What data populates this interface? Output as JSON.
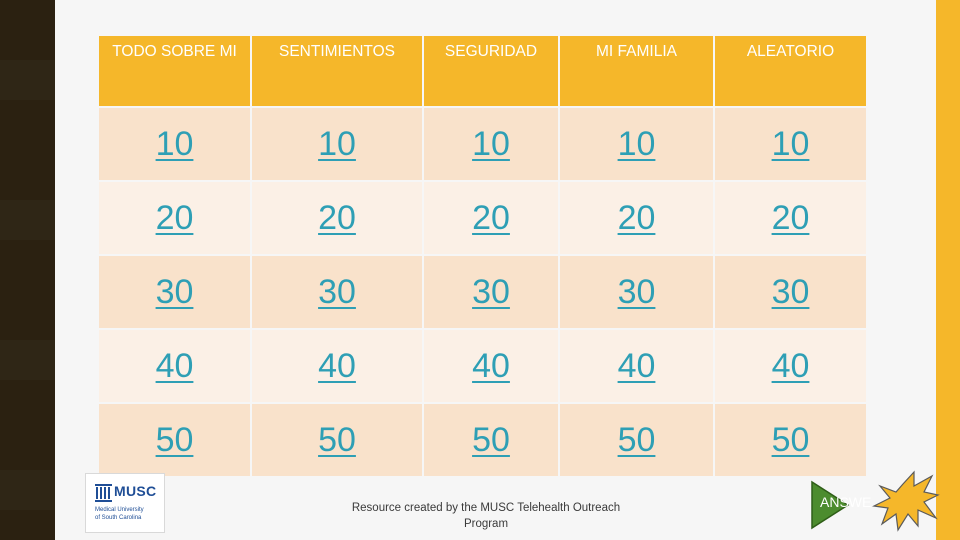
{
  "board": {
    "categories": [
      "TODO SOBRE MI",
      "SENTIMIENTOS",
      "SEGURIDAD",
      "MI FAMILIA",
      "ALEATORIO"
    ],
    "rows": [
      [
        "10",
        "10",
        "10",
        "10",
        "10"
      ],
      [
        "20",
        "20",
        "20",
        "20",
        "20"
      ],
      [
        "30",
        "30",
        "30",
        "30",
        "30"
      ],
      [
        "40",
        "40",
        "40",
        "40",
        "40"
      ],
      [
        "50",
        "50",
        "50",
        "50",
        "50"
      ]
    ]
  },
  "footer": {
    "credit": "Resource created by the MUSC Telehealth Outreach Program",
    "logo_text": "MUSC",
    "logo_subtext_1": "Medical University",
    "logo_subtext_2": "of South Carolina",
    "answer_label": "ANSWE"
  },
  "colors": {
    "header_bg": "#f5b72a",
    "cell_dark": "#f9e2cb",
    "cell_light": "#fbf0e6",
    "link": "#2e9fb5",
    "left_strip": "#2b2111",
    "answer_arrow": "#4c8c2e"
  }
}
